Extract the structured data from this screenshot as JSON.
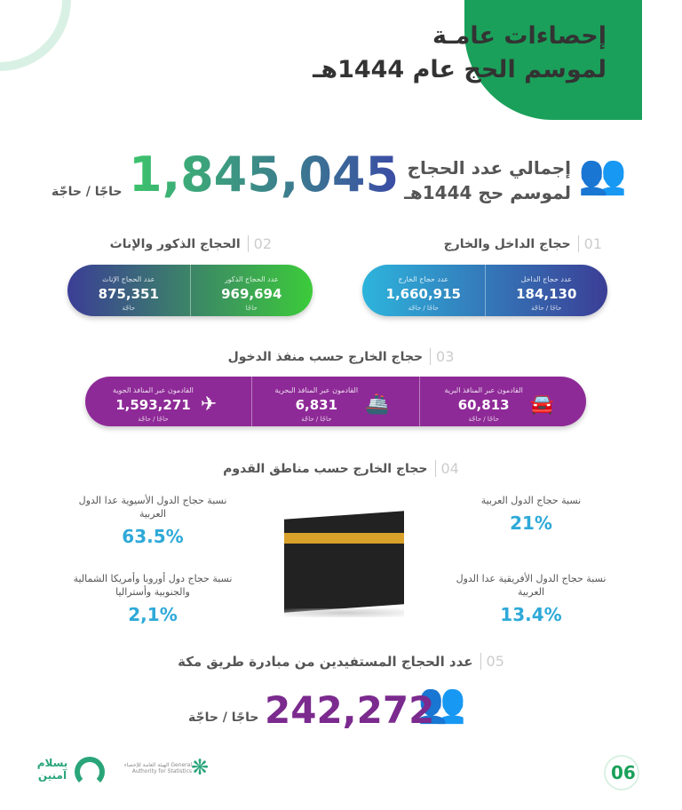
{
  "header": {
    "title_line1": "إحصاءات عامـة",
    "title_line2": "لموسم الحج عام 1444هـ"
  },
  "total": {
    "label_line1": "إجمالي عدد الحجاج",
    "label_line2": "لموسم حج 1444هـ",
    "value": "1,845,045",
    "unit": "حاجًا / حاجّة"
  },
  "sections": [
    {
      "number": "01",
      "title": "حجاج الداخل والخارج",
      "cells": [
        {
          "label": "عدد حجاج الداخل",
          "value": "184,130",
          "unit": "حاجًا / حاجّة"
        },
        {
          "label": "عدد حجاج الخارج",
          "value": "1,660,915",
          "unit": "حاجًا / حاجّة"
        }
      ]
    },
    {
      "number": "02",
      "title": "الحجاج الذكور والإناث",
      "cells": [
        {
          "label": "عدد الحجاج الذكور",
          "value": "969,694",
          "unit": "حاجًا"
        },
        {
          "label": "عدد الحجاج الإناث",
          "value": "875,351",
          "unit": "حاجّة"
        }
      ]
    },
    {
      "number": "03",
      "title": "حجاج الخارج حسب منفذ الدخول",
      "cells": [
        {
          "label": "القادمون عبر المنافذ البرية",
          "value": "60,813",
          "unit": "حاجًا / حاجّة",
          "icon": "car-icon"
        },
        {
          "label": "القادمون عبر المنافذ البحرية",
          "value": "6,831",
          "unit": "حاجًا / حاجّة",
          "icon": "ship-icon"
        },
        {
          "label": "القادمون عبر المنافذ الجوية",
          "value": "1,593,271",
          "unit": "حاجًا / حاجّة",
          "icon": "airplane-icon"
        }
      ]
    },
    {
      "number": "04",
      "title": "حجاج الخارج حسب مناطق القدوم",
      "stats": [
        {
          "label": "نسبة حجاج الدول العربية",
          "value": "21%"
        },
        {
          "label": "نسبة حجاج الدول الأفريقية عدا الدول العربية",
          "value": "13.4%"
        },
        {
          "label": "نسبة حجاج الدول الأسيوية عدا الدول العربية",
          "value": "63.5%"
        },
        {
          "label": "نسبة حجاج دول أوروبا وأمريكا الشمالية والجنوبية وأستراليا",
          "value": "2,1%"
        }
      ]
    },
    {
      "number": "05",
      "title": "عدد الحجاج المستفيدين من مبادرة طريق مكة",
      "value": "242,272",
      "unit": "حاجًا / حاجّة"
    }
  ],
  "footer": {
    "page": "06",
    "logo1": "بسلام آمنين",
    "logo2": "الهيئة العامة للإحصاء General Authority for Statistics"
  },
  "colors": {
    "green": "#1aa05a",
    "purple": "#8e2a97",
    "blue": "#2ea9d8",
    "navy": "#3b3e96"
  }
}
